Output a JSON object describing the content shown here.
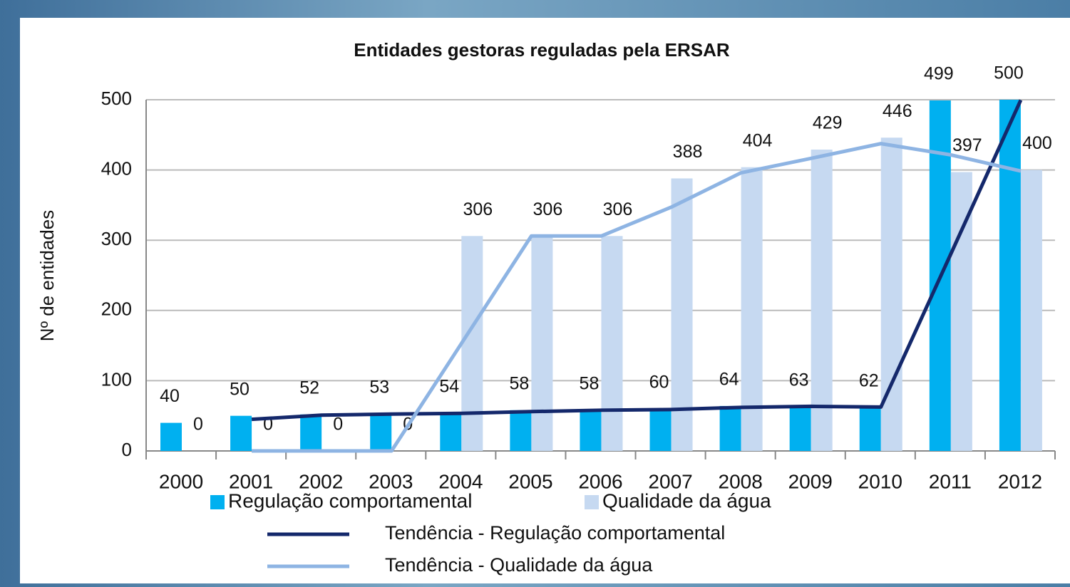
{
  "chart_data": {
    "type": "bar",
    "title": "Entidades gestoras reguladas pela ERSAR",
    "y_label": "Nº de entidades",
    "categories": [
      "2000",
      "2001",
      "2002",
      "2003",
      "2004",
      "2005",
      "2006",
      "2007",
      "2008",
      "2009",
      "2010",
      "2011",
      "2012"
    ],
    "series": [
      {
        "name": "Regulação comportamental",
        "color": "#00b0f0",
        "values": [
          40,
          50,
          52,
          53,
          54,
          58,
          58,
          60,
          64,
          63,
          62,
          499,
          500
        ]
      },
      {
        "name": "Qualidade da água",
        "color": "#c6d9f1",
        "values": [
          0,
          0,
          0,
          0,
          306,
          306,
          306,
          388,
          404,
          429,
          446,
          397,
          400
        ]
      },
      {
        "name": "Tendência - Regulação comportamental",
        "type": "line",
        "color": "#14286b",
        "values": [
          null,
          45,
          51,
          52.5,
          53.5,
          56,
          58,
          59,
          62,
          63.5,
          62.5,
          280.5,
          499.5
        ]
      },
      {
        "name": "Tendência - Qualidade da água",
        "type": "line",
        "color": "#8eb4e3",
        "values": [
          null,
          0,
          0,
          0,
          153,
          306,
          306,
          347,
          396,
          416.5,
          437.5,
          421.5,
          398.5
        ]
      }
    ],
    "ylim": [
      0,
      500
    ],
    "yticks": [
      0,
      100,
      200,
      300,
      400,
      500
    ],
    "grid": true
  }
}
